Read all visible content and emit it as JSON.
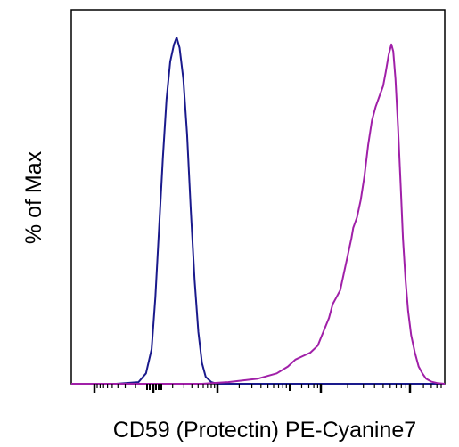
{
  "chart_data": {
    "type": "line",
    "title": "",
    "xlabel": "CD59 (Protectin) PE-Cyanine7",
    "ylabel": "% of Max",
    "xscale": "log (biexponential)",
    "ylim": [
      0,
      100
    ],
    "grid": false,
    "legend": "none",
    "series": [
      {
        "color": "#1a1a8c",
        "points": [
          [
            0.0,
            0.0
          ],
          [
            0.12,
            0.0
          ],
          [
            0.18,
            0.5
          ],
          [
            0.2,
            3
          ],
          [
            0.215,
            10
          ],
          [
            0.225,
            25
          ],
          [
            0.235,
            45
          ],
          [
            0.245,
            65
          ],
          [
            0.255,
            82
          ],
          [
            0.265,
            93
          ],
          [
            0.275,
            98
          ],
          [
            0.282,
            100
          ],
          [
            0.29,
            97
          ],
          [
            0.3,
            88
          ],
          [
            0.31,
            72
          ],
          [
            0.32,
            50
          ],
          [
            0.33,
            30
          ],
          [
            0.34,
            15
          ],
          [
            0.35,
            6
          ],
          [
            0.36,
            2
          ],
          [
            0.375,
            0.5
          ],
          [
            0.39,
            0.0
          ],
          [
            0.6,
            0.0
          ],
          [
            1.0,
            0.0
          ]
        ]
      },
      {
        "color": "#a020a8",
        "points": [
          [
            0.0,
            0.0
          ],
          [
            0.35,
            0.0
          ],
          [
            0.42,
            0.5
          ],
          [
            0.5,
            1.5
          ],
          [
            0.55,
            3
          ],
          [
            0.58,
            5
          ],
          [
            0.6,
            7
          ],
          [
            0.62,
            8
          ],
          [
            0.64,
            9
          ],
          [
            0.66,
            11
          ],
          [
            0.675,
            15
          ],
          [
            0.69,
            19
          ],
          [
            0.7,
            23
          ],
          [
            0.71,
            25
          ],
          [
            0.72,
            27
          ],
          [
            0.73,
            32
          ],
          [
            0.74,
            37
          ],
          [
            0.75,
            42
          ],
          [
            0.755,
            45
          ],
          [
            0.765,
            48
          ],
          [
            0.775,
            53
          ],
          [
            0.785,
            60
          ],
          [
            0.795,
            69
          ],
          [
            0.805,
            76
          ],
          [
            0.815,
            80
          ],
          [
            0.825,
            83
          ],
          [
            0.835,
            86
          ],
          [
            0.842,
            90
          ],
          [
            0.85,
            95
          ],
          [
            0.857,
            98
          ],
          [
            0.862,
            96
          ],
          [
            0.868,
            88
          ],
          [
            0.875,
            74
          ],
          [
            0.882,
            57
          ],
          [
            0.888,
            42
          ],
          [
            0.895,
            30
          ],
          [
            0.902,
            21
          ],
          [
            0.91,
            14
          ],
          [
            0.92,
            9
          ],
          [
            0.93,
            5
          ],
          [
            0.94,
            3
          ],
          [
            0.95,
            1.5
          ],
          [
            0.965,
            0.6
          ],
          [
            0.98,
            0.2
          ],
          [
            1.0,
            0.0
          ]
        ]
      }
    ]
  }
}
